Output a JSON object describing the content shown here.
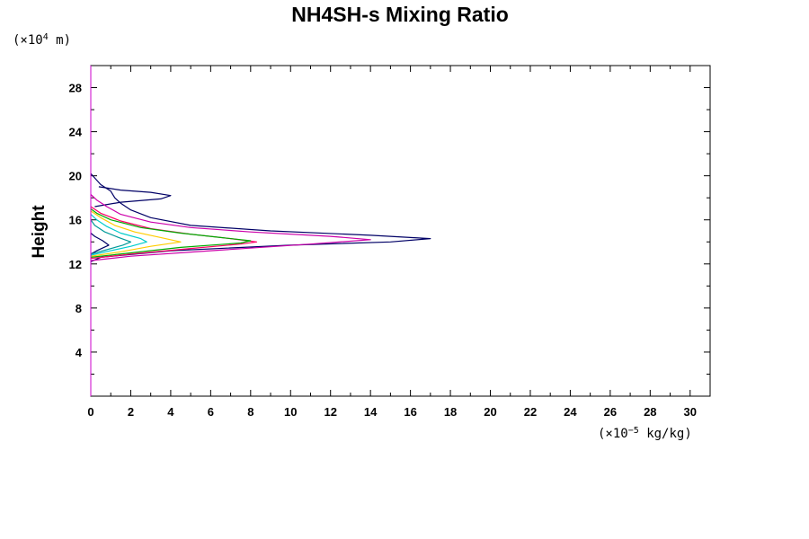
{
  "chart_data": {
    "type": "line",
    "title": "NH4SH-s Mixing Ratio",
    "ylabel": "Height",
    "y_unit": {
      "prefix": "(×10",
      "exp": "4",
      "suffix": " m)"
    },
    "x_unit": {
      "prefix": "(×10",
      "exp": "−5",
      "suffix": " kg/kg)"
    },
    "xlim": [
      0,
      31
    ],
    "ylim": [
      0,
      30
    ],
    "x_ticks": [
      "0",
      "2",
      "4",
      "6",
      "8",
      "10",
      "12",
      "14",
      "16",
      "18",
      "20",
      "22",
      "24",
      "26",
      "28",
      "30"
    ],
    "y_ticks": [
      "4",
      "8",
      "12",
      "16",
      "20",
      "24",
      "28"
    ],
    "grid": false,
    "series": [
      {
        "color": "#000066",
        "points": [
          [
            0,
            12.2
          ],
          [
            0.5,
            12.6
          ],
          [
            4,
            13.2
          ],
          [
            10,
            13.7
          ],
          [
            15,
            14.0
          ],
          [
            17,
            14.3
          ],
          [
            14,
            14.6
          ],
          [
            9,
            15.0
          ],
          [
            5,
            15.5
          ],
          [
            3,
            16.2
          ],
          [
            2,
            16.9
          ],
          [
            1.5,
            17.5
          ],
          [
            1.2,
            18.0
          ],
          [
            1.0,
            18.6
          ],
          [
            0.5,
            19.2
          ],
          [
            0.2,
            19.8
          ],
          [
            0,
            20.2
          ]
        ]
      },
      {
        "color": "#000066",
        "points": [
          [
            0,
            12.9
          ],
          [
            0.3,
            13.2
          ],
          [
            0.9,
            13.7
          ],
          [
            0.6,
            14.1
          ],
          [
            0.2,
            14.5
          ],
          [
            0,
            14.8
          ]
        ]
      },
      {
        "color": "#000066",
        "points": [
          [
            0.2,
            17.2
          ],
          [
            1.5,
            17.6
          ],
          [
            3.5,
            17.9
          ],
          [
            4,
            18.2
          ],
          [
            3.0,
            18.5
          ],
          [
            1.5,
            18.7
          ],
          [
            0.4,
            19.0
          ]
        ]
      },
      {
        "color": "#cc00aa",
        "points": [
          [
            0,
            12.3
          ],
          [
            2,
            12.7
          ],
          [
            6,
            13.2
          ],
          [
            11,
            13.8
          ],
          [
            14,
            14.2
          ],
          [
            12,
            14.5
          ],
          [
            8,
            14.9
          ],
          [
            5,
            15.3
          ],
          [
            3,
            15.8
          ],
          [
            1.5,
            16.5
          ],
          [
            0.8,
            17.2
          ],
          [
            0.3,
            17.8
          ],
          [
            0,
            18.3
          ]
        ]
      },
      {
        "color": "#ff0066",
        "points": [
          [
            0,
            12.5
          ],
          [
            2,
            12.9
          ],
          [
            5,
            13.4
          ],
          [
            7.5,
            13.8
          ],
          [
            8.3,
            14.0
          ],
          [
            7,
            14.3
          ],
          [
            5,
            14.7
          ],
          [
            3,
            15.2
          ],
          [
            1.5,
            15.9
          ],
          [
            0.5,
            16.6
          ],
          [
            0,
            17.2
          ]
        ]
      },
      {
        "color": "#00aa00",
        "points": [
          [
            0,
            12.6
          ],
          [
            2,
            13.0
          ],
          [
            4.5,
            13.5
          ],
          [
            7.5,
            13.9
          ],
          [
            8.0,
            14.1
          ],
          [
            6.5,
            14.4
          ],
          [
            4.5,
            14.8
          ],
          [
            2.5,
            15.3
          ],
          [
            1.0,
            16.0
          ],
          [
            0.3,
            16.6
          ],
          [
            0,
            17.0
          ]
        ]
      },
      {
        "color": "#ffcc00",
        "points": [
          [
            0,
            12.7
          ],
          [
            1.5,
            13.1
          ],
          [
            3.0,
            13.6
          ],
          [
            4.5,
            14.0
          ],
          [
            3.5,
            14.4
          ],
          [
            2.2,
            14.9
          ],
          [
            1.2,
            15.5
          ],
          [
            0.5,
            16.2
          ],
          [
            0,
            16.8
          ]
        ]
      },
      {
        "color": "#00cccc",
        "points": [
          [
            0,
            12.8
          ],
          [
            1.0,
            13.2
          ],
          [
            2.0,
            13.6
          ],
          [
            2.8,
            14.0
          ],
          [
            2.5,
            14.3
          ],
          [
            1.5,
            14.8
          ],
          [
            0.8,
            15.4
          ],
          [
            0.3,
            16.0
          ],
          [
            0,
            16.5
          ]
        ]
      },
      {
        "color": "#009999",
        "points": [
          [
            0,
            12.9
          ],
          [
            0.8,
            13.3
          ],
          [
            1.6,
            13.7
          ],
          [
            2.0,
            14.0
          ],
          [
            1.4,
            14.4
          ],
          [
            0.7,
            14.9
          ],
          [
            0.2,
            15.5
          ],
          [
            0,
            16.0
          ]
        ]
      }
    ]
  }
}
